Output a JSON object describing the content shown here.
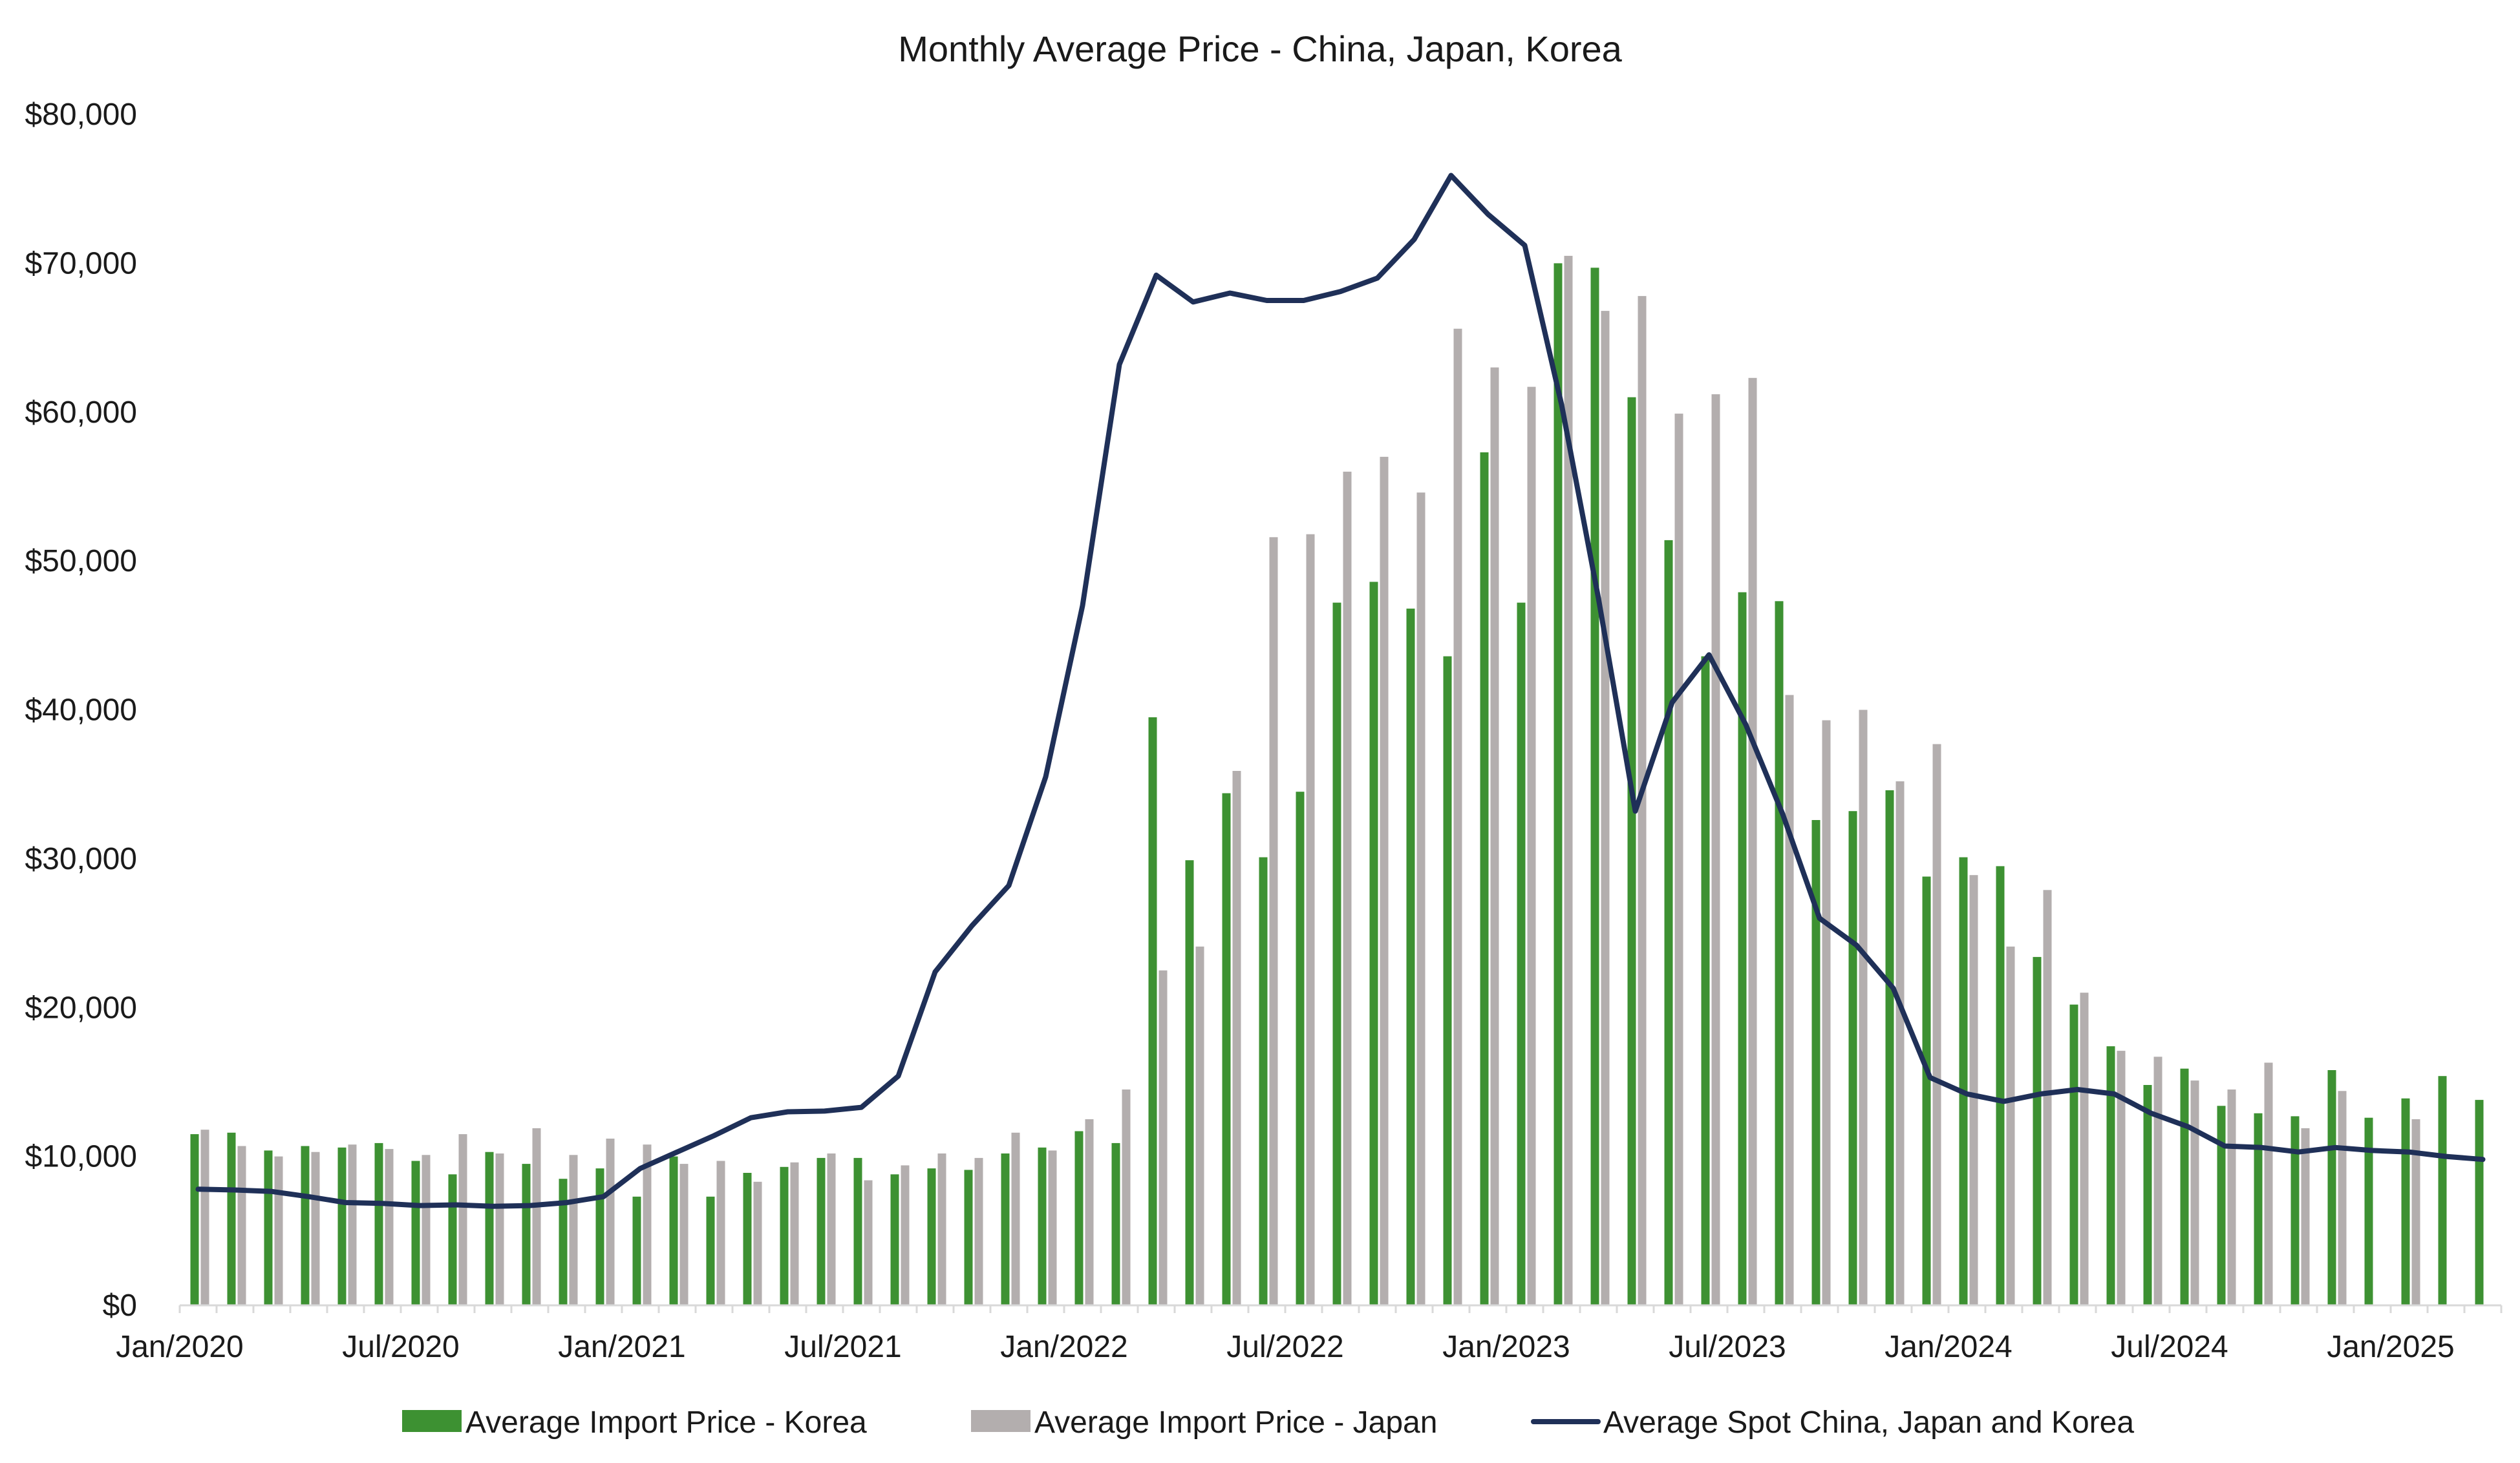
{
  "chart_data": {
    "type": "bar",
    "title": "Monthly Average Price - China, Japan, Korea",
    "xlabel": "",
    "ylabel": "",
    "ylim": [
      0,
      80000
    ],
    "y_ticks": [
      0,
      10000,
      20000,
      30000,
      40000,
      50000,
      60000,
      70000,
      80000
    ],
    "y_tick_labels": [
      "$0",
      "$10,000",
      "$20,000",
      "$30,000",
      "$40,000",
      "$50,000",
      "$60,000",
      "$70,000",
      "$80,000"
    ],
    "x_tick_labels": [
      {
        "index": 0,
        "label": "Jan/2020"
      },
      {
        "index": 6,
        "label": "Jul/2020"
      },
      {
        "index": 12,
        "label": "Jan/2021"
      },
      {
        "index": 18,
        "label": "Jul/2021"
      },
      {
        "index": 24,
        "label": "Jan/2022"
      },
      {
        "index": 30,
        "label": "Jul/2022"
      },
      {
        "index": 36,
        "label": "Jan/2023"
      },
      {
        "index": 42,
        "label": "Jul/2023"
      },
      {
        "index": 48,
        "label": "Jan/2024"
      },
      {
        "index": 54,
        "label": "Jul/2024"
      },
      {
        "index": 60,
        "label": "Jan/2025"
      }
    ],
    "categories": [
      "Jan/2020",
      "Feb/2020",
      "Mar/2020",
      "Apr/2020",
      "May/2020",
      "Jun/2020",
      "Jul/2020",
      "Aug/2020",
      "Sep/2020",
      "Oct/2020",
      "Nov/2020",
      "Dec/2020",
      "Jan/2021",
      "Feb/2021",
      "Mar/2021",
      "Apr/2021",
      "May/2021",
      "Jun/2021",
      "Jul/2021",
      "Aug/2021",
      "Sep/2021",
      "Oct/2021",
      "Nov/2021",
      "Dec/2021",
      "Jan/2022",
      "Feb/2022",
      "Mar/2022",
      "Apr/2022",
      "May/2022",
      "Jun/2022",
      "Jul/2022",
      "Aug/2022",
      "Sep/2022",
      "Oct/2022",
      "Nov/2022",
      "Dec/2022",
      "Jan/2023",
      "Feb/2023",
      "Mar/2023",
      "Apr/2023",
      "May/2023",
      "Jun/2023",
      "Jul/2023",
      "Aug/2023",
      "Sep/2023",
      "Oct/2023",
      "Nov/2023",
      "Dec/2023",
      "Jan/2024",
      "Feb/2024",
      "Mar/2024",
      "Apr/2024",
      "May/2024",
      "Jun/2024",
      "Jul/2024",
      "Aug/2024",
      "Sep/2024",
      "Oct/2024",
      "Nov/2024",
      "Dec/2024",
      "Jan/2025",
      "Feb/2025",
      "Mar/2025"
    ],
    "series": [
      {
        "name": "Average Import Price - Korea",
        "type": "bar",
        "color": "#3d9132",
        "values": [
          11500,
          11600,
          10400,
          10700,
          10600,
          10900,
          9700,
          8800,
          10300,
          9500,
          8500,
          9200,
          7300,
          10000,
          7300,
          8900,
          9300,
          9900,
          9900,
          8800,
          9200,
          9100,
          10200,
          10600,
          11700,
          10900,
          39500,
          29900,
          34400,
          30100,
          34500,
          47200,
          48600,
          46800,
          43600,
          57300,
          47200,
          70000,
          69700,
          61000,
          51400,
          43600,
          47900,
          47300,
          32600,
          33200,
          34600,
          28800,
          30100,
          29500,
          23400,
          20200,
          17400,
          14800,
          15900,
          13400,
          12900,
          12700,
          15800,
          12600,
          13900,
          15400,
          13800
        ]
      },
      {
        "name": "Average Import Price - Japan",
        "type": "bar",
        "color": "#b3aeae",
        "values": [
          11800,
          10700,
          10000,
          10300,
          10800,
          10500,
          10100,
          11500,
          10200,
          11900,
          10100,
          11200,
          10800,
          9500,
          9700,
          8300,
          9600,
          10200,
          8400,
          9400,
          10200,
          9900,
          11600,
          10400,
          12500,
          14500,
          22500,
          24100,
          35900,
          51600,
          51800,
          56000,
          57000,
          54600,
          65600,
          63000,
          61700,
          70500,
          66800,
          67800,
          59900,
          61200,
          62300,
          41000,
          39300,
          40000,
          35200,
          37700,
          28900,
          24100,
          27900,
          21000,
          17100,
          16700,
          15100,
          14500,
          16300,
          11900,
          14400,
          null,
          12500,
          null,
          null
        ]
      },
      {
        "name": "Average Spot China, Japan and Korea",
        "type": "line",
        "color": "#1f3058",
        "values": [
          7800,
          7750,
          7650,
          7300,
          6900,
          6850,
          6700,
          6750,
          6650,
          6700,
          6900,
          7300,
          9200,
          10300,
          11400,
          12600,
          13000,
          13050,
          13300,
          15400,
          22400,
          25500,
          28200,
          35500,
          47000,
          63200,
          69200,
          67400,
          68000,
          67500,
          67500,
          68100,
          69000,
          71600,
          75900,
          73300,
          71200,
          60500,
          47500,
          33200,
          40500,
          43700,
          39000,
          33000,
          26000,
          24200,
          21300,
          15300,
          14200,
          13700,
          14200,
          14500,
          14200,
          12900,
          12000,
          10700,
          10600,
          10300,
          10600,
          10400,
          10300,
          10000,
          9800
        ]
      }
    ],
    "legend": {
      "placement": "bottom",
      "entries": [
        "Average Import Price - Korea",
        "Average Import Price - Japan",
        "Average Spot China, Japan and Korea"
      ]
    },
    "grid": false
  }
}
